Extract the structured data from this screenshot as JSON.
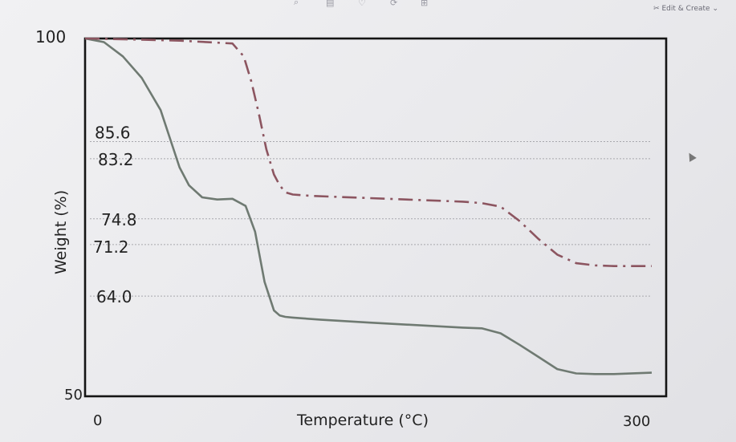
{
  "toolbar": {
    "icons": [
      "zoom-icon",
      "document-icon",
      "heart-icon",
      "rotate-icon",
      "crop-icon"
    ],
    "edit_create_label": "Edit & Create"
  },
  "chart_data": {
    "type": "line",
    "title": "",
    "xlabel": "Temperature (°C)",
    "ylabel": "Weight (%)",
    "xlim": [
      0,
      300
    ],
    "ylim": [
      50,
      100
    ],
    "x_tick_labels": [
      "0",
      "300"
    ],
    "y_tick_labels": [
      "100",
      "50"
    ],
    "grid": false,
    "series": [
      {
        "name": "solid",
        "style": "solid",
        "color": "#6f7a72",
        "x": [
          0,
          10,
          20,
          30,
          40,
          50,
          55,
          62,
          70,
          78,
          85,
          90,
          95,
          100,
          103,
          106,
          110,
          115,
          125,
          150,
          200,
          210,
          220,
          230,
          240,
          250,
          260,
          270,
          280,
          300
        ],
        "y": [
          100,
          99.5,
          97.5,
          94.5,
          90,
          82,
          79.5,
          77.8,
          77.5,
          77.6,
          76.6,
          73,
          66,
          62,
          61.3,
          61.1,
          61,
          60.9,
          60.7,
          60.3,
          59.6,
          59.5,
          58.8,
          57.2,
          55.5,
          53.8,
          53.2,
          53.1,
          53.1,
          53.3
        ]
      },
      {
        "name": "dash-dot",
        "style": "dash-dot",
        "color": "#8c5560",
        "x": [
          0,
          20,
          50,
          78,
          84,
          88,
          92,
          96,
          100,
          103,
          106,
          110,
          120,
          150,
          200,
          210,
          220,
          230,
          240,
          250,
          260,
          270,
          280,
          290,
          300
        ],
        "y": [
          100,
          99.9,
          99.7,
          99.3,
          97.5,
          94,
          89.5,
          84.5,
          81,
          79.5,
          78.5,
          78.2,
          78,
          77.7,
          77.2,
          77,
          76.5,
          74.5,
          72,
          69.8,
          68.6,
          68.3,
          68.2,
          68.2,
          68.2
        ]
      }
    ],
    "reference_lines": [
      85.6,
      83.2,
      74.8,
      71.2,
      64.0
    ],
    "annotations": [
      "85.6",
      "83.2",
      "74.8",
      "71.2",
      "64.0"
    ]
  }
}
